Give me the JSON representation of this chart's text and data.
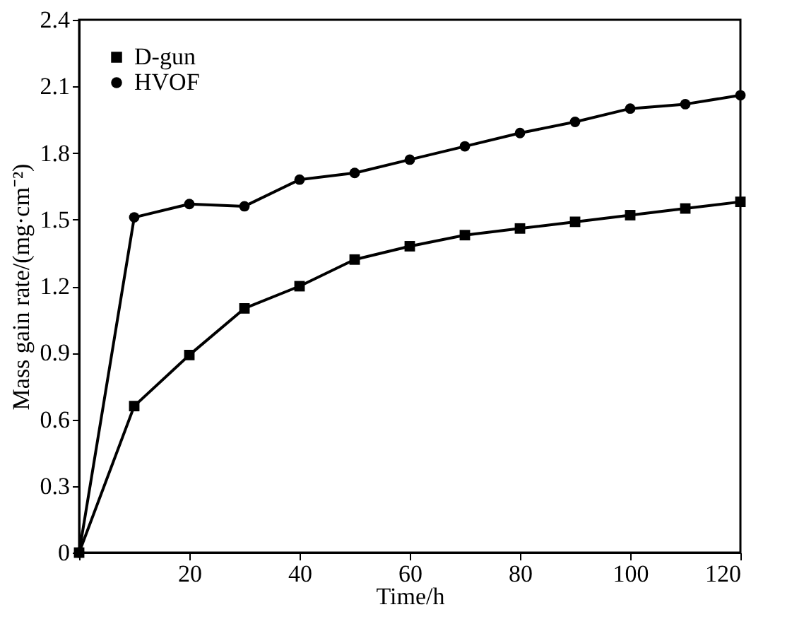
{
  "chart_data": {
    "type": "line",
    "xlabel": "Time/h",
    "ylabel": "Mass gain rate/(mg·cm⁻²)",
    "x": [
      0,
      10,
      20,
      30,
      40,
      50,
      60,
      70,
      80,
      90,
      100,
      110,
      120
    ],
    "series": [
      {
        "name": "D-gun",
        "color": "#000000",
        "marker": "square",
        "values": [
          0,
          0.66,
          0.89,
          1.1,
          1.2,
          1.32,
          1.38,
          1.43,
          1.46,
          1.49,
          1.52,
          1.55,
          1.58
        ]
      },
      {
        "name": "HVOF",
        "color": "#000000",
        "marker": "circle",
        "values": [
          0,
          1.51,
          1.57,
          1.56,
          1.68,
          1.71,
          1.77,
          1.83,
          1.89,
          1.94,
          2.0,
          2.02,
          2.06
        ]
      }
    ],
    "xlim": [
      0,
      120
    ],
    "ylim": [
      0,
      2.4
    ],
    "xticks": [
      {
        "value": 0,
        "label": null
      },
      20,
      40,
      60,
      80,
      100,
      120
    ],
    "yticks": [
      0,
      0.3,
      0.6,
      0.9,
      1.2,
      1.5,
      1.8,
      2.1,
      2.4
    ],
    "grid": false,
    "legend": "top left",
    "line_style": "solid"
  }
}
